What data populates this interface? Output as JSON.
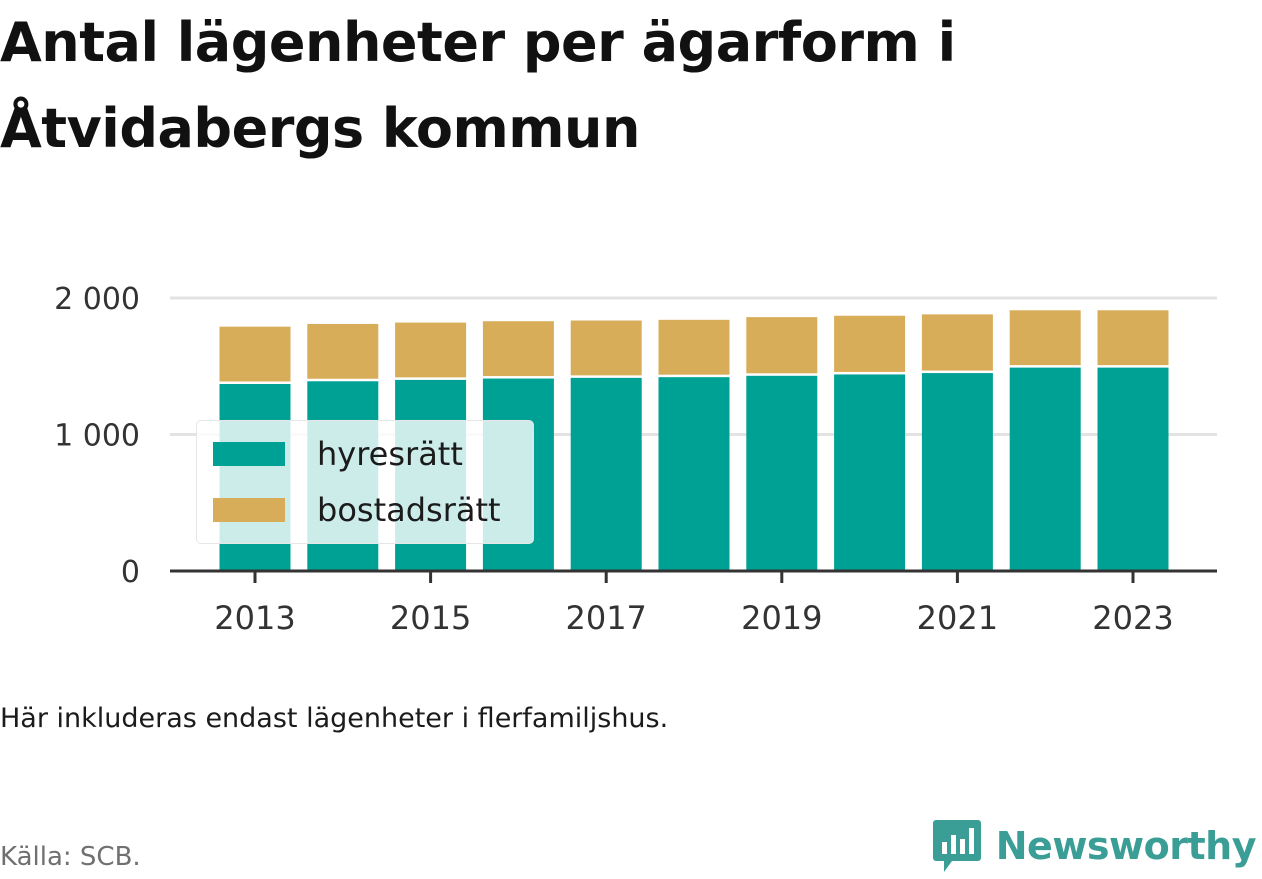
{
  "title": "Antal lägenheter per ägarform i Åtvidabergs kommun",
  "note": "Här inkluderas endast lägenheter i flerfamiljshus.",
  "source": "Källa: SCB.",
  "brand": {
    "name": "Newsworthy",
    "icon": "bar-chart-speech-bubble-icon",
    "color": "#3a9e96"
  },
  "colors": {
    "hyresratt": "#00a195",
    "bostadsratt": "#d8ad5a",
    "grid": "#e3e3e3",
    "axis": "#333333"
  },
  "chart_data": {
    "type": "bar",
    "stacked": true,
    "categories": [
      "2013",
      "2014",
      "2015",
      "2016",
      "2017",
      "2018",
      "2019",
      "2020",
      "2021",
      "2022",
      "2023"
    ],
    "x_tick_labels": [
      "2013",
      "2015",
      "2017",
      "2019",
      "2021",
      "2023"
    ],
    "series": [
      {
        "name": "hyresrätt",
        "values": [
          1370,
          1390,
          1400,
          1410,
          1415,
          1420,
          1430,
          1440,
          1450,
          1490,
          1490
        ]
      },
      {
        "name": "bostadsrätt",
        "values": [
          420,
          420,
          420,
          420,
          420,
          420,
          430,
          430,
          430,
          420,
          420
        ]
      }
    ],
    "y_ticks": [
      0,
      1000,
      2000
    ],
    "y_tick_labels": [
      "0",
      "1 000",
      "2 000"
    ],
    "ylim": [
      0,
      2000
    ],
    "grid": true,
    "legend": "top-left inside plot"
  }
}
